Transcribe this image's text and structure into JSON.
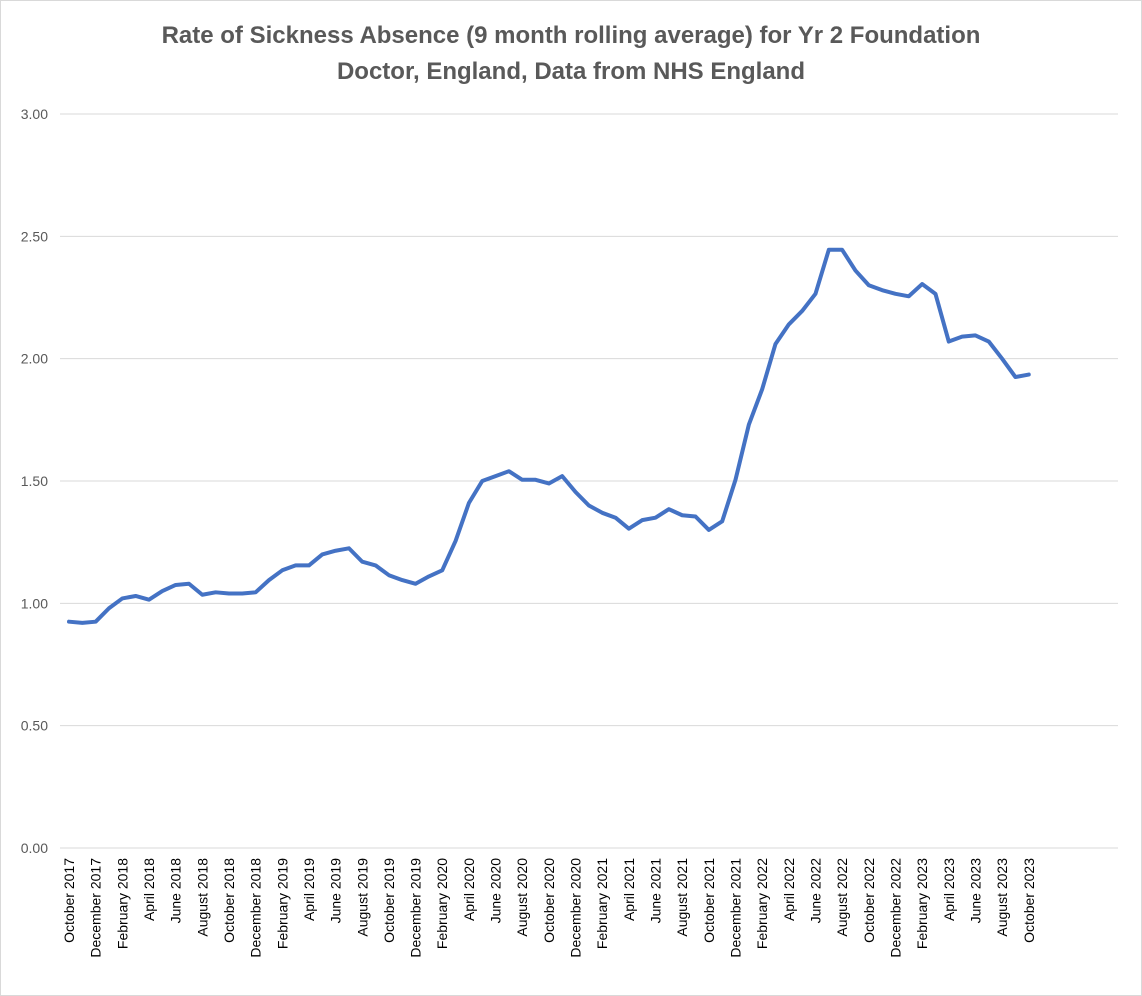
{
  "chart_data": {
    "type": "line",
    "title": "Rate of Sickness Absence (9 month rolling average) for Yr 2 Foundation\nDoctor, England, Data from NHS England",
    "xlabel": "",
    "ylabel": "",
    "ylim": [
      0,
      3
    ],
    "yticks": [
      "0.00",
      "0.50",
      "1.00",
      "1.50",
      "2.00",
      "2.50",
      "3.00"
    ],
    "grid": true,
    "legend": "none",
    "series_color": "#4472C4",
    "x_tick_labels": [
      "October 2017",
      "December 2017",
      "February 2018",
      "April 2018",
      "June 2018",
      "August 2018",
      "October 2018",
      "December 2018",
      "February 2019",
      "April 2019",
      "June 2019",
      "August 2019",
      "October 2019",
      "December 2019",
      "February 2020",
      "April 2020",
      "June 2020",
      "August 2020",
      "October 2020",
      "December 2020",
      "February 2021",
      "April 2021",
      "June 2021",
      "August 2021",
      "October 2021",
      "December 2021",
      "February 2022",
      "April 2022",
      "June 2022",
      "August 2022",
      "October 2022",
      "December 2022",
      "February 2023",
      "April 2023",
      "June 2023",
      "August 2023",
      "October 2023"
    ],
    "series": [
      {
        "name": "Rate of Sickness Absence",
        "values": [
          0.925,
          0.92,
          0.925,
          0.98,
          1.02,
          1.03,
          1.015,
          1.05,
          1.075,
          1.08,
          1.035,
          1.045,
          1.04,
          1.04,
          1.045,
          1.095,
          1.135,
          1.155,
          1.155,
          1.2,
          1.215,
          1.225,
          1.17,
          1.155,
          1.115,
          1.095,
          1.08,
          1.11,
          1.135,
          1.255,
          1.41,
          1.5,
          1.52,
          1.54,
          1.505,
          1.505,
          1.49,
          1.52,
          1.455,
          1.4,
          1.37,
          1.35,
          1.305,
          1.34,
          1.35,
          1.385,
          1.36,
          1.355,
          1.3,
          1.335,
          1.505,
          1.73,
          1.875,
          2.06,
          2.14,
          2.195,
          2.265,
          2.445,
          2.445,
          2.36,
          2.3,
          2.28,
          2.265,
          2.255,
          2.305,
          2.265,
          2.07,
          2.09,
          2.095,
          2.07,
          2.0,
          1.925,
          1.935
        ]
      }
    ]
  }
}
